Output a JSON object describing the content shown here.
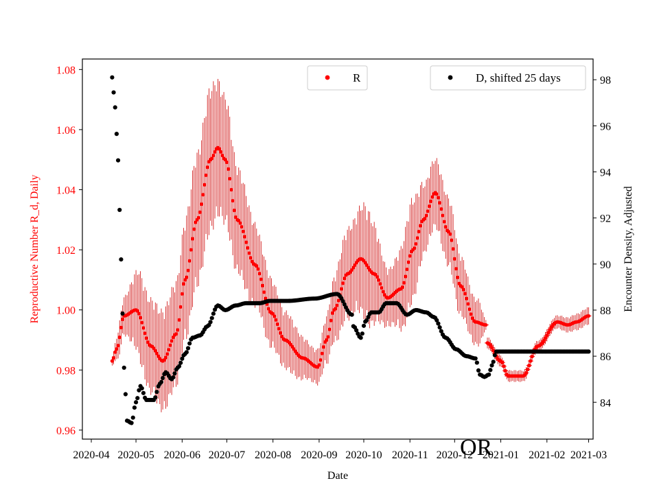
{
  "chart_data": {
    "type": "scatter",
    "title": "",
    "annotation": "OR",
    "xlabel": "Date",
    "ylabel_left": "Reproductive Number R_d, Daily",
    "ylabel_right": "Encounter Density, Adjusted",
    "x_ticks": [
      "2020-04",
      "2020-05",
      "2020-06",
      "2020-07",
      "2020-08",
      "2020-09",
      "2020-10",
      "2020-11",
      "2020-12",
      "2021-01",
      "2021-02",
      "2021-03"
    ],
    "y_left_ticks": [
      "0.96",
      "0.98",
      "1.00",
      "1.02",
      "1.04",
      "1.06",
      "1.08"
    ],
    "y_right_ticks": [
      "84",
      "86",
      "88",
      "90",
      "92",
      "94",
      "96",
      "98"
    ],
    "xlim_days": [
      -6,
      337
    ],
    "ylim_left": [
      0.957,
      1.0835
    ],
    "ylim_right": [
      82.4,
      98.9
    ],
    "left_axis_color": "#ff0000",
    "legend_left": {
      "label": "R",
      "color": "#ff0000",
      "position": "upper-center"
    },
    "legend_right": {
      "label": "D, shifted 25 days",
      "color": "#000000",
      "position": "upper-right"
    },
    "series": [
      {
        "name": "R",
        "axis": "left",
        "color": "#ff0000",
        "error_color": "#cc0000",
        "x_start": "2020-04-15",
        "knots_day": [
          14,
          17,
          22,
          30,
          40,
          48,
          57,
          63,
          71,
          80,
          85,
          90,
          98,
          110,
          121,
          130,
          142,
          152,
          158,
          163,
          172,
          181,
          190,
          199,
          208,
          216,
          223,
          231,
          240,
          248,
          258,
          265,
          266,
          275,
          280,
          290,
          300,
          313,
          320,
          326,
          334
        ],
        "knots_val": [
          0.983,
          0.987,
          0.998,
          1.0,
          0.988,
          0.983,
          0.992,
          1.01,
          1.03,
          1.05,
          1.054,
          1.05,
          1.03,
          1.015,
          0.999,
          0.99,
          0.984,
          0.981,
          0.99,
          1.0,
          1.012,
          1.017,
          1.012,
          1.004,
          1.007,
          1.02,
          1.03,
          1.039,
          1.026,
          1.008,
          0.996,
          0.995,
          0.989,
          0.983,
          0.978,
          0.978,
          0.988,
          0.996,
          0.995,
          0.996,
          0.998
        ],
        "errors_day": [
          14,
          20,
          35,
          55,
          70,
          80,
          90,
          100,
          115,
          130,
          150,
          175,
          185,
          200,
          215,
          225,
          240,
          260,
          265,
          290,
          300,
          334
        ],
        "errors_val": [
          0.002,
          0.006,
          0.016,
          0.018,
          0.023,
          0.025,
          0.022,
          0.018,
          0.013,
          0.01,
          0.006,
          0.016,
          0.02,
          0.01,
          0.018,
          0.012,
          0.012,
          0.008,
          0.002,
          0.002,
          0.002,
          0.003
        ]
      },
      {
        "name": "D, shifted 25 days",
        "axis": "right",
        "color": "#000000",
        "x_start": "2020-04-15",
        "knots_day": [
          14,
          16,
          18,
          20,
          22,
          24,
          27,
          30,
          33,
          37,
          42,
          46,
          50,
          54,
          58,
          63,
          68,
          73,
          78,
          85,
          90,
          97,
          104,
          108,
          113,
          120,
          132,
          150,
          165,
          175,
          176,
          181,
          184,
          188,
          193,
          198,
          205,
          212,
          218,
          225,
          230,
          238,
          245,
          252,
          258,
          261,
          264,
          267,
          269,
          272,
          278,
          334
        ],
        "knots_val": [
          98.1,
          96.8,
          94.5,
          90.2,
          85.5,
          83.2,
          83.1,
          84.0,
          84.7,
          84.1,
          84.1,
          84.8,
          85.3,
          85.0,
          85.5,
          86.1,
          86.8,
          86.9,
          87.3,
          88.2,
          88.0,
          88.2,
          88.3,
          88.3,
          88.3,
          88.4,
          88.4,
          88.5,
          88.7,
          87.8,
          87.3,
          86.8,
          87.5,
          87.9,
          87.9,
          88.3,
          88.3,
          87.8,
          88.0,
          87.9,
          87.7,
          86.8,
          86.3,
          86.0,
          85.9,
          85.2,
          85.1,
          85.2,
          85.6,
          86.2,
          86.2,
          86.2
        ]
      }
    ]
  }
}
